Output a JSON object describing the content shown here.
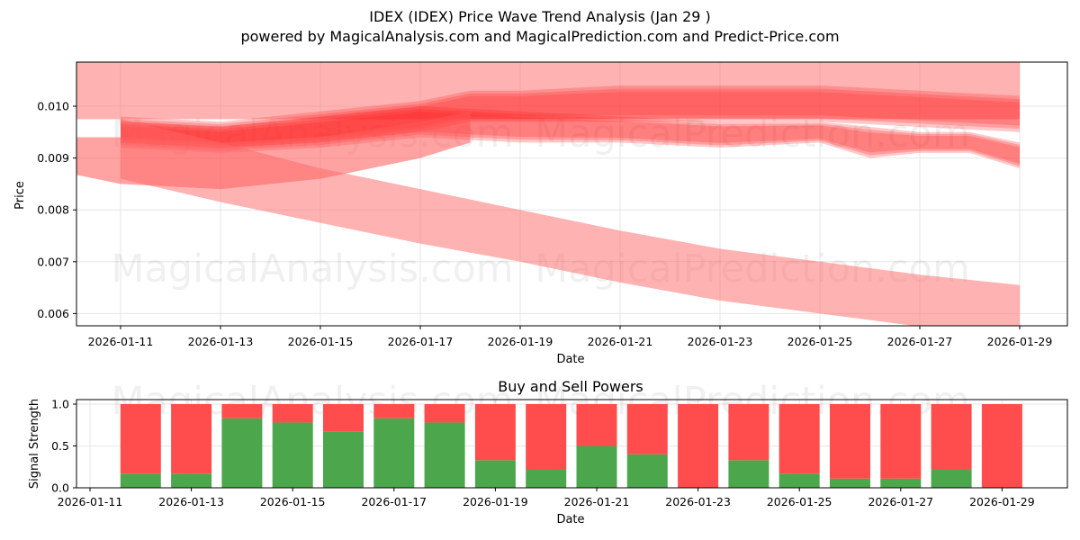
{
  "header": {
    "title": "IDEX (IDEX) Price Wave Trend Analysis (Jan 29 )",
    "subtitle": "powered by MagicalAnalysis.com and MagicalPrediction.com and Predict-Price.com"
  },
  "watermarks": [
    "MagicalAnalysis.com",
    "MagicalPrediction.com"
  ],
  "colors": {
    "band": "#ff0000",
    "buy": "#4ca64c",
    "sell": "#ff4c4c",
    "grid": "#e6e6e6"
  },
  "chart_data": [
    {
      "type": "area",
      "title": "",
      "xlabel": "Date",
      "ylabel": "Price",
      "ylim": [
        0.00575,
        0.01085
      ],
      "grid": true,
      "x_ticks": [
        "2026-01-11",
        "2026-01-13",
        "2026-01-15",
        "2026-01-17",
        "2026-01-19",
        "2026-01-21",
        "2026-01-23",
        "2026-01-25",
        "2026-01-27",
        "2026-01-29"
      ],
      "y_ticks": [
        "0.006",
        "0.007",
        "0.008",
        "0.009",
        "0.010"
      ],
      "series": [
        {
          "name": "wide-upper-band",
          "x": [
            "2026-01-10",
            "2026-01-29"
          ],
          "upper": [
            0.0109,
            0.0109
          ],
          "lower": [
            0.00975,
            0.00975
          ]
        },
        {
          "name": "main-wave-band",
          "x": [
            "2026-01-11",
            "2026-01-13",
            "2026-01-15",
            "2026-01-17",
            "2026-01-18",
            "2026-01-19",
            "2026-01-21",
            "2026-01-23",
            "2026-01-25",
            "2026-01-27",
            "2026-01-29"
          ],
          "upper": [
            0.0098,
            0.0097,
            0.0099,
            0.0101,
            0.0103,
            0.0103,
            0.0104,
            0.0104,
            0.0104,
            0.0103,
            0.0102
          ],
          "lower": [
            0.0093,
            0.0092,
            0.0093,
            0.0095,
            0.0097,
            0.0097,
            0.0097,
            0.0097,
            0.0097,
            0.0096,
            0.0095
          ]
        },
        {
          "name": "short-wave-band",
          "x": [
            "2026-01-11",
            "2026-01-13",
            "2026-01-15",
            "2026-01-17",
            "2026-01-19",
            "2026-01-21",
            "2026-01-23",
            "2026-01-25",
            "2026-01-26",
            "2026-01-27",
            "2026-01-28",
            "2026-01-29"
          ],
          "upper": [
            0.0097,
            0.0096,
            0.0098,
            0.01,
            0.0099,
            0.0098,
            0.0097,
            0.0097,
            0.0096,
            0.0095,
            0.0095,
            0.0093
          ],
          "lower": [
            0.0092,
            0.0091,
            0.0092,
            0.0094,
            0.0093,
            0.0093,
            0.0092,
            0.0093,
            0.009,
            0.0091,
            0.0091,
            0.0088
          ]
        },
        {
          "name": "lower-curved-band",
          "x": [
            "2026-01-10",
            "2026-01-11",
            "2026-01-13",
            "2026-01-15",
            "2026-01-17",
            "2026-01-18"
          ],
          "upper": [
            0.0094,
            0.0094,
            0.0093,
            0.0094,
            0.0097,
            0.0099
          ],
          "lower": [
            0.0087,
            0.0085,
            0.0084,
            0.0086,
            0.009,
            0.0093
          ]
        },
        {
          "name": "declining-band",
          "x": [
            "2026-01-11",
            "2026-01-13",
            "2026-01-15",
            "2026-01-17",
            "2026-01-19",
            "2026-01-21",
            "2026-01-23",
            "2026-01-25",
            "2026-01-27",
            "2026-01-29"
          ],
          "upper": [
            0.00975,
            0.0093,
            0.0088,
            0.0084,
            0.008,
            0.0076,
            0.00725,
            0.007,
            0.00675,
            0.00655
          ],
          "lower": [
            0.0086,
            0.00815,
            0.00775,
            0.00735,
            0.007,
            0.0066,
            0.00625,
            0.006,
            0.00575,
            0.00555
          ]
        }
      ]
    },
    {
      "type": "bar",
      "title": "Buy and Sell Powers",
      "xlabel": "Date",
      "ylabel": "Signal Strength",
      "ylim": [
        0,
        1.05
      ],
      "grid": true,
      "x_ticks": [
        "2026-01-11",
        "2026-01-13",
        "2026-01-15",
        "2026-01-17",
        "2026-01-19",
        "2026-01-21",
        "2026-01-23",
        "2026-01-25",
        "2026-01-27",
        "2026-01-29"
      ],
      "y_ticks": [
        "0.0",
        "0.5",
        "1.0"
      ],
      "stacked": true,
      "categories": [
        "2026-01-12",
        "2026-01-13",
        "2026-01-14",
        "2026-01-15",
        "2026-01-16",
        "2026-01-17",
        "2026-01-18",
        "2026-01-19",
        "2026-01-20",
        "2026-01-21",
        "2026-01-22",
        "2026-01-23",
        "2026-01-24",
        "2026-01-25",
        "2026-01-26",
        "2026-01-27",
        "2026-01-28",
        "2026-01-29"
      ],
      "series": [
        {
          "name": "Buy",
          "color": "#4ca64c",
          "values": [
            0.17,
            0.17,
            0.83,
            0.78,
            0.67,
            0.83,
            0.78,
            0.33,
            0.22,
            0.5,
            0.4,
            0.0,
            0.33,
            0.17,
            0.11,
            0.11,
            0.22,
            0.0
          ]
        },
        {
          "name": "Sell",
          "color": "#ff4c4c",
          "values": [
            0.83,
            0.83,
            0.17,
            0.22,
            0.33,
            0.17,
            0.22,
            0.67,
            0.78,
            0.5,
            0.6,
            1.0,
            0.67,
            0.83,
            0.89,
            0.89,
            0.78,
            1.0
          ]
        }
      ]
    }
  ]
}
